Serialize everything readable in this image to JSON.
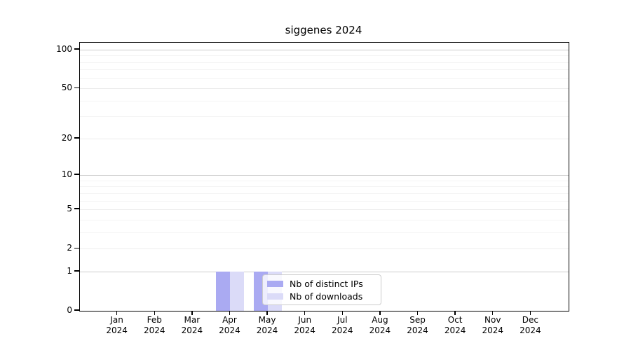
{
  "title": "siggenes 2024",
  "chart_data": {
    "type": "bar",
    "categories": [
      "Jan 2024",
      "Feb 2024",
      "Mar 2024",
      "Apr 2024",
      "May 2024",
      "Jun 2024",
      "Jul 2024",
      "Aug 2024",
      "Sep 2024",
      "Oct 2024",
      "Nov 2024",
      "Dec 2024"
    ],
    "series": [
      {
        "name": "Nb of distinct IPs",
        "color": "#aaaaf2",
        "values": [
          0,
          0,
          0,
          1,
          1,
          0,
          0,
          0,
          0,
          0,
          0,
          0
        ]
      },
      {
        "name": "Nb of downloads",
        "color": "#dbdbf8",
        "values": [
          0,
          0,
          0,
          1,
          1,
          0,
          0,
          0,
          0,
          0,
          0,
          0
        ]
      }
    ],
    "title": "siggenes 2024",
    "xlabel": "",
    "ylabel": "",
    "yscale": "log1p",
    "ylim": [
      0,
      113
    ],
    "y_ticks": [
      0,
      1,
      2,
      5,
      10,
      20,
      50,
      100
    ],
    "y_minor_gridlines": [
      3,
      4,
      6,
      7,
      8,
      9,
      30,
      40,
      60,
      70,
      80,
      90
    ],
    "grid": "horizontal",
    "legend_position": "inside-bottom"
  },
  "colors": {
    "background": "#ffffff",
    "spine": "#000000",
    "grid_power10": "#cccccc",
    "grid_major": "#ececec",
    "grid_minor": "#f4f4f4",
    "bar_distinct_ips": "#aaaaf2",
    "bar_downloads": "#dbdbf8",
    "legend_border": "#cccccc"
  }
}
